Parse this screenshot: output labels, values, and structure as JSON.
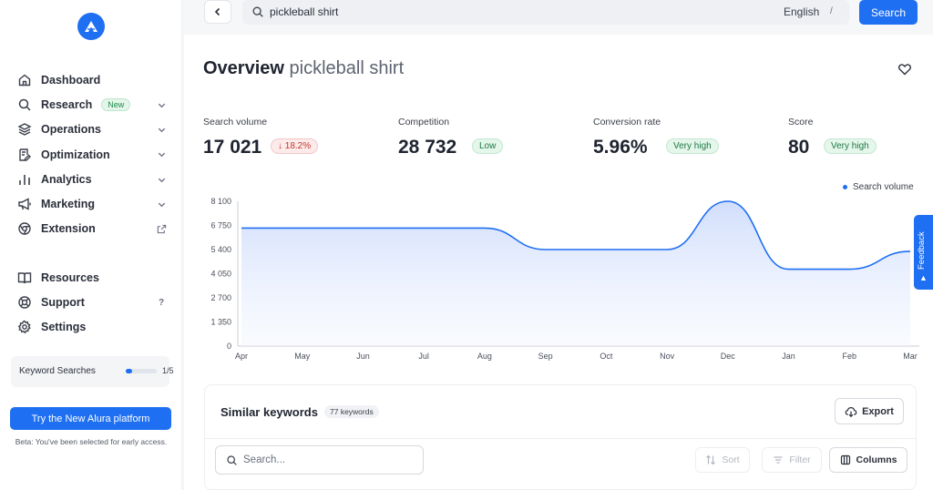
{
  "sidebar": {
    "nav": [
      {
        "label": "Dashboard",
        "icon": "home-icon"
      },
      {
        "label": "Research",
        "icon": "search-icon",
        "badge": "New",
        "chevron": true
      },
      {
        "label": "Operations",
        "icon": "layers-icon",
        "chevron": true
      },
      {
        "label": "Optimization",
        "icon": "document-edit-icon",
        "chevron": true
      },
      {
        "label": "Analytics",
        "icon": "bar-chart-icon",
        "chevron": true
      },
      {
        "label": "Marketing",
        "icon": "megaphone-icon",
        "chevron": true
      },
      {
        "label": "Extension",
        "icon": "chrome-icon",
        "external": true
      }
    ],
    "nav2": [
      {
        "label": "Resources",
        "icon": "book-icon"
      },
      {
        "label": "Support",
        "icon": "lifebuoy-icon",
        "shortcut": "?"
      },
      {
        "label": "Settings",
        "icon": "gear-icon"
      }
    ],
    "keyword_searches": {
      "label": "Keyword Searches",
      "count": "1/5",
      "progress": 0.2
    },
    "try_button": "Try the New Alura platform",
    "beta_text": "Beta: You've been selected for early access."
  },
  "topbar": {
    "search_value": "pickleball shirt",
    "language": "English",
    "slash": "/",
    "search_button": "Search"
  },
  "overview": {
    "title": "Overview",
    "keyword": "pickleball shirt"
  },
  "metrics": [
    {
      "label": "Search volume",
      "value": "17 021",
      "badge": "18.2%",
      "badge_prefix": "↓",
      "badge_type": "negative"
    },
    {
      "label": "Competition",
      "value": "28 732",
      "badge": "Low",
      "badge_type": "positive"
    },
    {
      "label": "Conversion rate",
      "value": "5.96%",
      "badge": "Very high",
      "badge_type": "positive"
    },
    {
      "label": "Score",
      "value": "80",
      "badge": "Very high",
      "badge_type": "positive"
    }
  ],
  "chart_data": {
    "type": "area",
    "title": "",
    "xlabel": "",
    "ylabel": "",
    "categories": [
      "Apr",
      "May",
      "Jun",
      "Jul",
      "Aug",
      "Sep",
      "Oct",
      "Nov",
      "Dec",
      "Jan",
      "Feb",
      "Mar"
    ],
    "y_ticks": [
      "0",
      "1 350",
      "2 700",
      "4 050",
      "5 400",
      "6 750",
      "8 100"
    ],
    "ylim": [
      0,
      8100
    ],
    "series": [
      {
        "name": "Search volume",
        "color": "#1e6ff2",
        "values": [
          6600,
          6600,
          6600,
          6600,
          6600,
          5400,
          5400,
          5400,
          8100,
          4300,
          4300,
          5300
        ]
      }
    ],
    "legend_position": "top-right",
    "grid": false
  },
  "similar": {
    "title": "Similar keywords",
    "count": "77 keywords",
    "export": "Export",
    "search_placeholder": "Search...",
    "sort": "Sort",
    "filter": "Filter",
    "columns": "Columns"
  },
  "feedback": "Feedback",
  "colors": {
    "accent": "#1e6ff2",
    "positive": "#1f7a44",
    "negative": "#c0392b"
  }
}
